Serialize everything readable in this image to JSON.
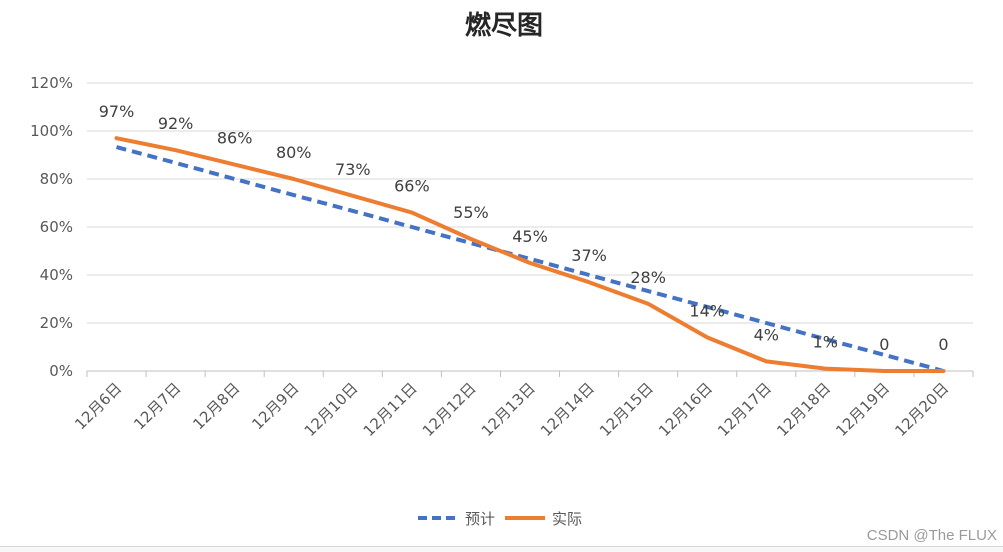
{
  "chart_data": {
    "type": "line",
    "title": "燃尽图",
    "categories": [
      "12月6日",
      "12月7日",
      "12月8日",
      "12月9日",
      "12月10日",
      "12月11日",
      "12月12日",
      "12月13日",
      "12月14日",
      "12月15日",
      "12月16日",
      "12月17日",
      "12月18日",
      "12月19日",
      "12月20日"
    ],
    "y_ticks": [
      "0%",
      "20%",
      "40%",
      "60%",
      "80%",
      "100%",
      "120%"
    ],
    "ylim": [
      0,
      1.2
    ],
    "grid": true,
    "legend_position": "bottom",
    "series": [
      {
        "name": "预计",
        "color": "#4472C4",
        "style": "dashed",
        "values": [
          0.933,
          0.867,
          0.8,
          0.733,
          0.667,
          0.6,
          0.533,
          0.467,
          0.4,
          0.333,
          0.267,
          0.2,
          0.133,
          0.067,
          0.0
        ]
      },
      {
        "name": "实际",
        "color": "#ED7D31",
        "style": "solid",
        "values": [
          0.97,
          0.92,
          0.86,
          0.8,
          0.73,
          0.66,
          0.55,
          0.45,
          0.37,
          0.28,
          0.14,
          0.04,
          0.01,
          0.0,
          0.0
        ],
        "labels": [
          "97%",
          "92%",
          "86%",
          "80%",
          "73%",
          "66%",
          "55%",
          "45%",
          "37%",
          "28%",
          "14%",
          "4%",
          "1%",
          "0",
          "0"
        ]
      }
    ]
  },
  "watermark": "CSDN @The FLUX"
}
